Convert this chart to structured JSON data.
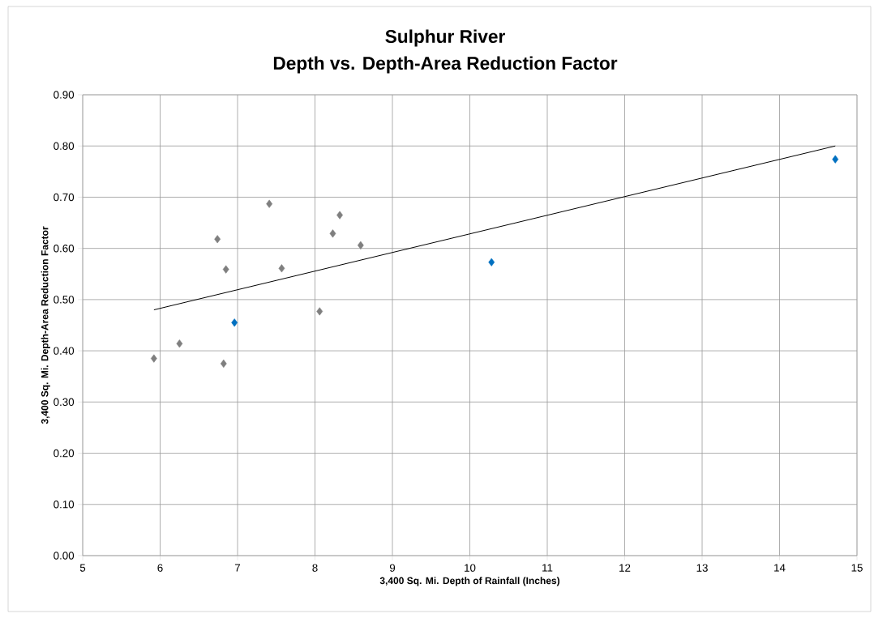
{
  "chart_data": {
    "type": "scatter",
    "title": "Sulphur River",
    "subtitle": "Depth vs. Depth-Area Reduction Factor",
    "xlabel": "3,400 Sq. Mi. Depth of Rainfall  (Inches)",
    "ylabel": "3,400 Sq. Mi. Depth-Area Reduction Factor",
    "xlim": [
      5,
      15
    ],
    "xticks": [
      5,
      6,
      7,
      8,
      9,
      10,
      11,
      12,
      13,
      14,
      15
    ],
    "ylim": [
      0,
      0.9
    ],
    "yticks": [
      {
        "value": 0,
        "label": "0.00"
      },
      {
        "value": 0.1,
        "label": "0.10"
      },
      {
        "value": 0.2,
        "label": "0.20"
      },
      {
        "value": 0.3,
        "label": "0.30"
      },
      {
        "value": 0.4,
        "label": "0.40"
      },
      {
        "value": 0.5,
        "label": "0.50"
      },
      {
        "value": 0.6,
        "label": "0.60"
      },
      {
        "value": 0.7,
        "label": "0.70"
      },
      {
        "value": 0.8,
        "label": "0.80"
      },
      {
        "value": 0.9,
        "label": "0.90"
      }
    ],
    "grid": true,
    "legend": false,
    "marker": "diamond",
    "series": [
      {
        "color": "#7f7f7f",
        "x": [
          5.92,
          6.25,
          6.74,
          6.85,
          6.82,
          7.41,
          7.57,
          8.06,
          8.23,
          8.32,
          8.59
        ],
        "values": [
          0.385,
          0.414,
          0.618,
          0.559,
          0.375,
          0.687,
          0.561,
          0.477,
          0.629,
          0.665,
          0.606
        ]
      },
      {
        "color": "#0070c0",
        "x": [
          6.96,
          10.28,
          14.72
        ],
        "values": [
          0.455,
          0.573,
          0.774
        ]
      },
      {
        "type": "line",
        "color": "#000000",
        "marker": "none",
        "x": [
          5.92,
          14.72
        ],
        "values": [
          0.48,
          0.8
        ]
      }
    ]
  }
}
